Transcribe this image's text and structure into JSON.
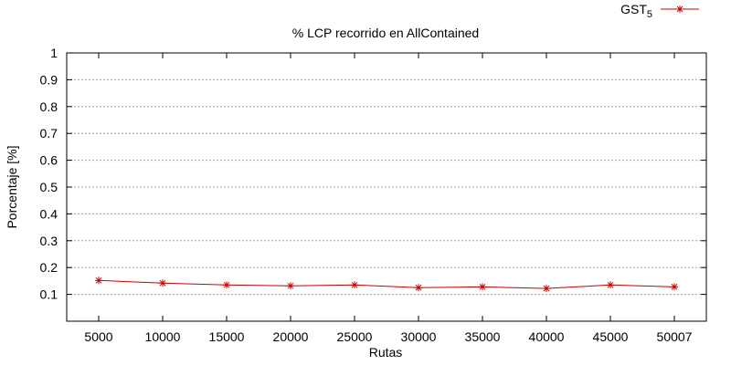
{
  "chart_data": {
    "type": "line",
    "title": "% LCP recorrido en AllContained",
    "xlabel": "Rutas",
    "ylabel": "Porcentaje [%]",
    "x": [
      5000,
      10000,
      15000,
      20000,
      25000,
      30000,
      35000,
      40000,
      45000,
      50007
    ],
    "x_tick_labels": [
      "5000",
      "10000",
      "15000",
      "20000",
      "25000",
      "30000",
      "35000",
      "40000",
      "45000",
      "50007"
    ],
    "y_ticks": [
      0.1,
      0.2,
      0.3,
      0.4,
      0.5,
      0.6,
      0.7,
      0.8,
      0.9,
      1
    ],
    "y_tick_labels": [
      "0.1",
      "0.2",
      "0.3",
      "0.4",
      "0.5",
      "0.6",
      "0.7",
      "0.8",
      "0.9",
      "1"
    ],
    "ylim": [
      0,
      1
    ],
    "grid": true,
    "legend_position": "top-right",
    "series": [
      {
        "name_main": "GST",
        "name_sub": "5",
        "color": "#cc0000",
        "marker": "asterisk",
        "values": [
          0.152,
          0.142,
          0.135,
          0.132,
          0.135,
          0.125,
          0.128,
          0.122,
          0.135,
          0.128
        ]
      }
    ]
  }
}
